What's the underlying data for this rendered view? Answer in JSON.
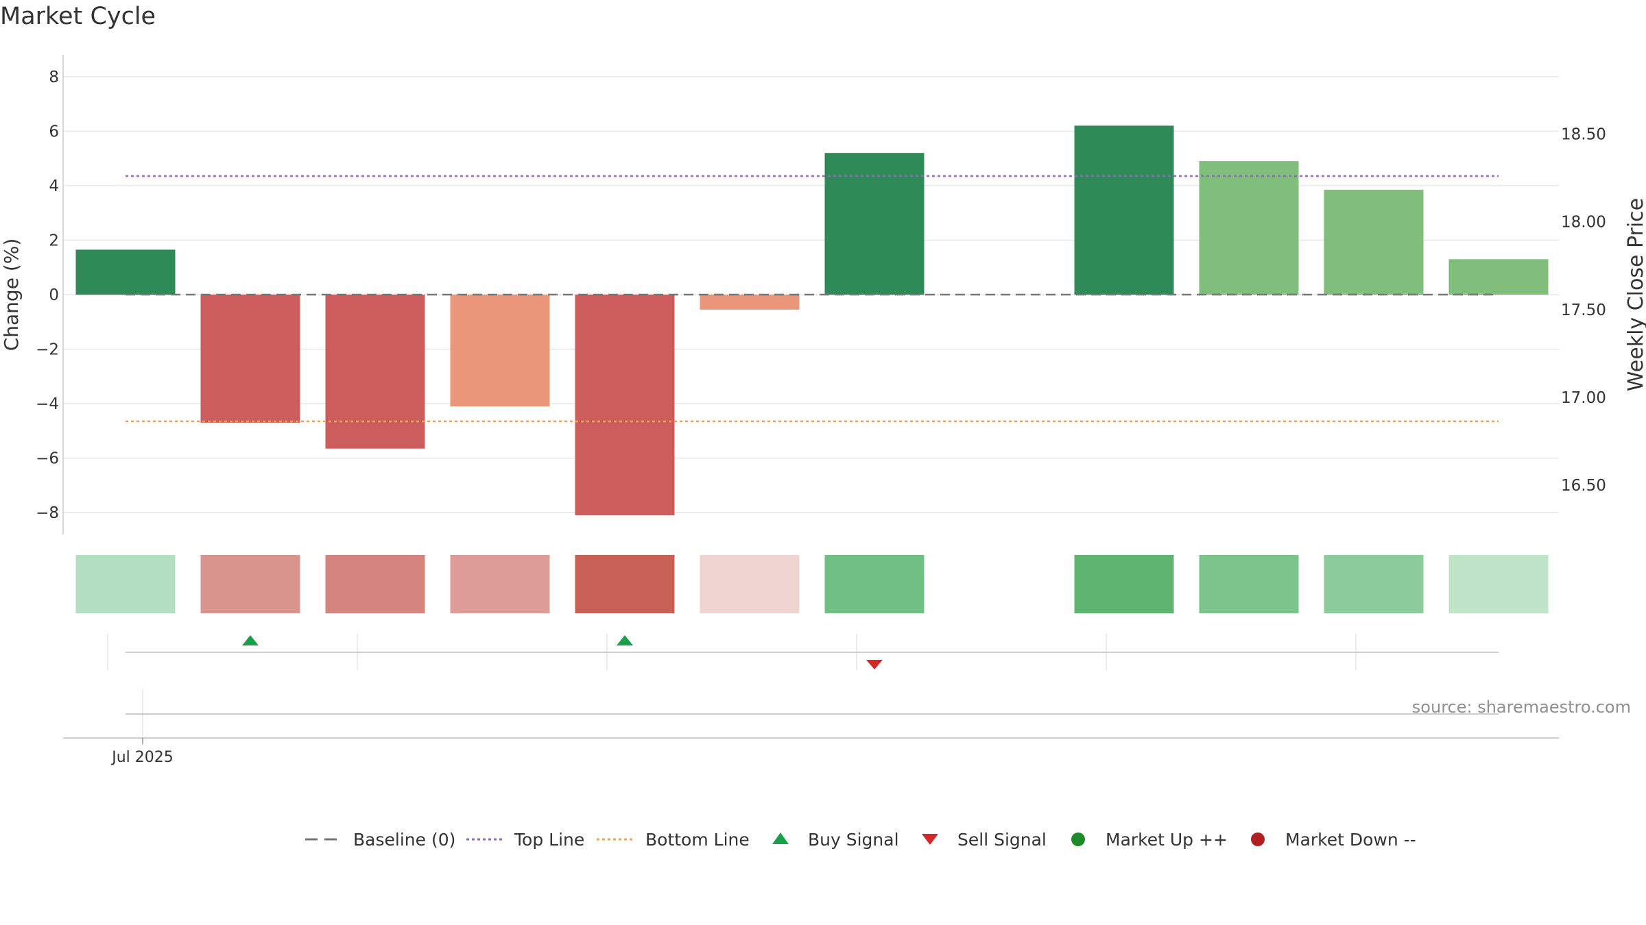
{
  "chart_data": {
    "type": "bar",
    "title": "Market Cycle",
    "ylabel": "Change (%)",
    "y2label": "Weekly Close Price",
    "ylim": [
      -8.8,
      8.8
    ],
    "y2lim": [
      16.22,
      18.95
    ],
    "yticks": [
      8,
      6,
      4,
      2,
      0,
      -2,
      -4,
      -6,
      -8
    ],
    "yticks_display": [
      "8",
      "6",
      "4",
      "2",
      "0",
      "−2",
      "−4",
      "−6",
      "−8"
    ],
    "y2ticks": [
      "18.50",
      "18.00",
      "17.50",
      "17.00",
      "16.50"
    ],
    "y2tick_values": [
      18.5,
      18.0,
      17.5,
      17.0,
      16.5
    ],
    "grid": true,
    "series": [
      {
        "name": "Weekly Change (%)",
        "values": [
          1.65,
          -4.7,
          -5.65,
          -4.1,
          -8.1,
          -0.55,
          5.2,
          null,
          6.2,
          4.9,
          3.85,
          1.3
        ],
        "colors": [
          "#2e8b57",
          "#cd5c5c",
          "#cd5c5c",
          "#e9967a",
          "#cd5c5c",
          "#e9967a",
          "#2e8b57",
          null,
          "#2e8b57",
          "#7fbf7b",
          "#7fbf7b",
          "#7fbf7b"
        ]
      }
    ],
    "heat_strip_colors": [
      "#b3e0c0",
      "#d9958d",
      "#d4837d",
      "#dd9c97",
      "#c96056",
      "#efd4d1",
      "#70bf83",
      null,
      "#5db56f",
      "#7bc48a",
      "#8ccb9b",
      "#bfe4c7"
    ],
    "reference_lines": {
      "baseline": 0,
      "top_line": 4.35,
      "bottom_line": -4.65
    },
    "signals": [
      {
        "type": "buy",
        "index": 1
      },
      {
        "type": "buy",
        "index": 4
      },
      {
        "type": "sell",
        "index": 6
      }
    ],
    "x_tick_label": "Jul 2025",
    "source": "source: sharemaestro.com",
    "legend": {
      "position": "bottom-center",
      "items": [
        {
          "label": "Baseline (0)",
          "kind": "dash",
          "color": "#777777"
        },
        {
          "label": "Top Line",
          "kind": "dot",
          "color": "#9467bd"
        },
        {
          "label": "Bottom Line",
          "kind": "dot",
          "color": "#f0a050"
        },
        {
          "label": "Buy Signal",
          "kind": "tri-up",
          "color": "#1aa048"
        },
        {
          "label": "Sell Signal",
          "kind": "tri-down",
          "color": "#d62728"
        },
        {
          "label": "Market Up ++",
          "kind": "circle",
          "color": "#1f8a2a"
        },
        {
          "label": "Market Down --",
          "kind": "circle",
          "color": "#b02020"
        }
      ]
    }
  }
}
